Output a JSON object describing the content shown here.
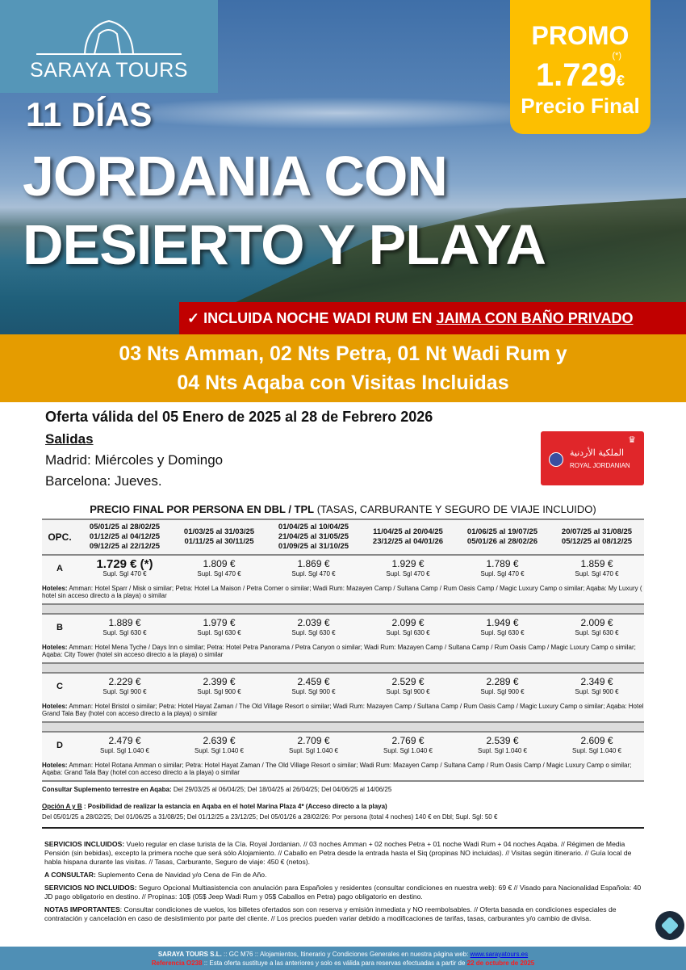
{
  "brand": {
    "name": "SARAYA TOURS"
  },
  "promo": {
    "label": "PROMO",
    "price": "1.729",
    "currency": "€",
    "asterisk": "(*)",
    "subtitle": "Precio Final"
  },
  "hero": {
    "days": "11 DÍAS",
    "title_line1": "JORDANIA CON",
    "title_line2": "DESIERTO Y PLAYA"
  },
  "banner": {
    "check": "✓",
    "text": "INCLUIDA NOCHE WADI RUM EN ",
    "underlined": "JAIMA CON BAÑO PRIVADO"
  },
  "itinerary": {
    "line1": "03 Nts Amman,  02 Nts Petra, 01 Nt Wadi Rum y",
    "line2": "04 Nts Aqaba con Visitas Incluidas"
  },
  "offer": {
    "validity": "Oferta válida del 05 Enero de 2025 al 28 de Febrero 2026",
    "salidas_label": "Salidas",
    "madrid": "Madrid: Miércoles y Domingo",
    "barcelona": "Barcelona: Jueves."
  },
  "airline": {
    "name": "ROYAL JORDANIAN",
    "arabic": "الملكية الأردنية"
  },
  "table": {
    "title_bold": "PRECIO FINAL POR PERSONA EN DBL / TPL",
    "title_rest": " (TASAS, CARBURANTE Y SEGURO DE VIAJE INCLUIDO)",
    "opc_label": "OPC.",
    "periods": [
      [
        "05/01/25 al 28/02/25",
        "01/12/25 al 04/12/25",
        "09/12/25 al 22/12/25"
      ],
      [
        "01/03/25 al 31/03/25",
        "01/11/25 al 30/11/25"
      ],
      [
        "01/04/25 al 10/04/25",
        "21/04/25 al 31/05/25",
        "01/09/25 al 31/10/25"
      ],
      [
        "11/04/25 al 20/04/25",
        "23/12/25 al 04/01/26"
      ],
      [
        "01/06/25 al 19/07/25",
        "05/01/26 al 28/02/26"
      ],
      [
        "20/07/25 al 31/08/25",
        "05/12/25 al 08/12/25"
      ]
    ],
    "hotels_label": "Hoteles:",
    "options": [
      {
        "opc": "A",
        "prices": [
          "1.729 € (*)",
          "1.809 €",
          "1.869 €",
          "1.929 €",
          "1.789 €",
          "1.859 €"
        ],
        "supl": "Supl. Sgl 470 €",
        "hotels": " Amman: Hotel Sparr / Misk o similar; Petra: Hotel La Maison / Petra Corner o similar;  Wadi Rum: Mazayen Camp / Sultana Camp / Rum Oasis Camp / Magic Luxury Camp o similar; Aqaba: My Luxury ( hotel sin acceso directo a la playa) o similar"
      },
      {
        "opc": "B",
        "prices": [
          "1.889 €",
          "1.979 €",
          "2.039 €",
          "2.099 €",
          "1.949 €",
          "2.009 €"
        ],
        "supl": "Supl. Sgl 630 €",
        "hotels": " Amman: Hotel Mena Tyche / Days Inn o similar;  Petra: Hotel Petra Panorama / Petra Canyon o similar; Wadi Rum: Mazayen Camp / Sultana Camp / Rum Oasis Camp / Magic Luxury Camp o similar;  Aqaba: City Tower (hotel sin acceso directo a la playa) o similar"
      },
      {
        "opc": "C",
        "prices": [
          "2.229 €",
          "2.399 €",
          "2.459 €",
          "2.529 €",
          "2.289 €",
          "2.349 €"
        ],
        "supl": "Supl. Sgl 900 €",
        "hotels": "  Amman: Hotel Bristol o similar; Petra: Hotel Hayat Zaman / The Old Village Resort o similar; Wadi Rum: Mazayen Camp / Sultana Camp / Rum Oasis Camp / Magic Luxury Camp o similar; Aqaba: Hotel Grand Tala Bay (hotel con acceso directo a la playa) o similar"
      },
      {
        "opc": "D",
        "prices": [
          "2.479 €",
          "2.639 €",
          "2.709 €",
          "2.769 €",
          "2.539 €",
          "2.609 €"
        ],
        "supl": "Supl. Sgl 1.040 €",
        "hotels": " Amman: Hotel Rotana Amman o similar; Petra: Hotel Hayat Zaman / The Old Village Resort o similar;  Wadi Rum: Mazayen Camp / Sultana Camp / Rum Oasis Camp / Magic Luxury Camp o similar; Aqaba: Grand Tala Bay (hotel con acceso directo a la playa) o similar"
      }
    ],
    "supplement_label": "Consultar Suplemento terrestre en Aqaba:",
    "supplement_text": " Del 29/03/25 al 06/04/25; Del 18/04/25 al 26/04/25; Del 04/06/25 al 14/06/25",
    "option_ab_label": "Opción A y B",
    "option_ab_title": " : Posibilidad de realizar la estancia en Aqaba en el hotel Marina Plaza 4* (Acceso directo a la playa)",
    "option_ab_colon": " :",
    "option_ab_text": "Del 05/01/25 a 28/02/25; Del 01/06/25 a 31/08/25; Del 01/12/25 a 23/12/25; Del 05/01/26 a 28/02/26: Por persona (total 4 noches) 140 € en Dbl; Supl. Sgl: 50 €"
  },
  "notes": {
    "incl_label": "SERVICIOS INCLUIDOS:",
    "incl_text": " Vuelo regular en clase turista de la Cía. Royal Jordanian. // 03 noches Amman + 02 noches Petra + 01 noche Wadi Rum + 04 noches Aqaba. // Régimen de Media Pensión (sin bebidas), excepto la primera noche que será sólo Alojamiento. // Caballo en Petra desde la entrada hasta el Siq (propinas NO incluidas). // Visitas según itinerario. // Guía local de habla hispana durante las visitas. // Tasas, Carburante, Seguro de viaje: 450 € (netos).",
    "consult_label": "A CONSULTAR:",
    "consult_text": " Suplemento Cena de Navidad y/o Cena de Fin de Año.",
    "noincl_label": "SERVICIOS NO INCLUIDOS:",
    "noincl_text": " Seguro Opcional Multiasistencia con anulación para Españoles y residentes (consultar condiciones en nuestra web): 69 € // Visado para Nacionalidad Española: 40 JD pago obligatorio en destino. // Propinas: 10$ (05$ Jeep Wadi Rum y 05$ Caballos en Petra) pago obligatorio en destino.",
    "notas_label": "NOTAS IMPORTANTES",
    "notas_text": ": Consultar condiciones de vuelos, los billetes ofertados son con reserva y emisión inmediata y NO reembolsables. // Oferta basada en condiciones especiales de contratación y cancelación en caso de desistimiento por parte del cliente. // Los precios pueden variar debido a modificaciones de tarifas, tasas, carburantes y/o cambio de divisa."
  },
  "footer": {
    "company": "SARAYA TOURS S.L.",
    "line1_text": " :: GC M76 ::  Alojamientos, Itinerario y Condiciones Generales en nuestra página web:  ",
    "website": "www.sarayatours.es",
    "reference": "Referencia O238",
    "line2_text": " :: Esta oferta sustituye a las anteriores y solo es válida para reservas efectuadas a partir de ",
    "date": "22 de octubre de 2025"
  },
  "colors": {
    "logo_bg": "#5596b8",
    "promo": "#fdbf00",
    "banner_red": "#c00000",
    "orange_band": "#e59c00",
    "footer_bar": "#4f8fb5",
    "airline_red": "#e0262a"
  },
  "icons": {
    "chat": "chat-widget-icon",
    "airline_crown": "crown-icon",
    "airline_globe": "globe-icon"
  }
}
